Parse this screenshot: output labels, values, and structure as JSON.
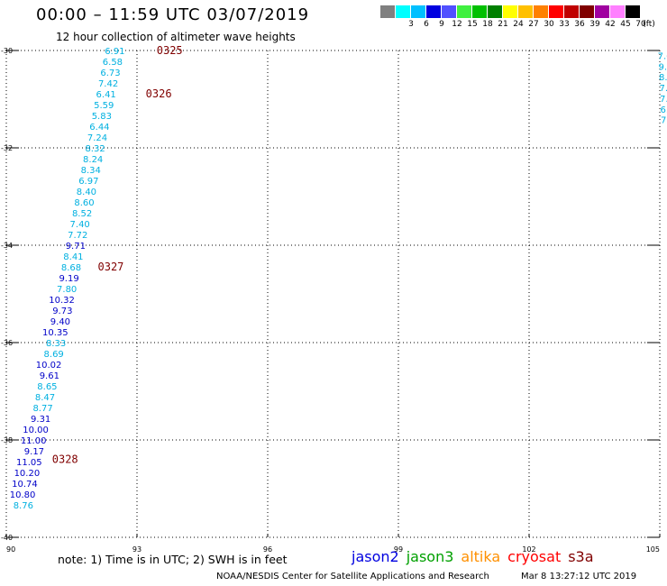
{
  "title": "00:00 – 11:59 UTC 03/07/2019",
  "subtitle": "12 hour collection of altimeter wave heights",
  "legend": {
    "unit": "(ft)",
    "bins": [
      {
        "label": "",
        "color": "#808080"
      },
      {
        "label": "3",
        "color": "#00ffff"
      },
      {
        "label": "6",
        "color": "#00c0ff"
      },
      {
        "label": "9",
        "color": "#0000e0"
      },
      {
        "label": "12",
        "color": "#5050ff"
      },
      {
        "label": "15",
        "color": "#40f040"
      },
      {
        "label": "18",
        "color": "#00c000"
      },
      {
        "label": "21",
        "color": "#008000"
      },
      {
        "label": "24",
        "color": "#ffff00"
      },
      {
        "label": "27",
        "color": "#ffc000"
      },
      {
        "label": "30",
        "color": "#ff8000"
      },
      {
        "label": "33",
        "color": "#ff0000"
      },
      {
        "label": "36",
        "color": "#c00000"
      },
      {
        "label": "39",
        "color": "#800000"
      },
      {
        "label": "42",
        "color": "#a000a0"
      },
      {
        "label": "45",
        "color": "#ff80ff"
      },
      {
        "label": "70",
        "color": "#000000"
      }
    ]
  },
  "map": {
    "lon_range": [
      90,
      105
    ],
    "lat_range": [
      -40,
      -30
    ],
    "x_ticks": [
      {
        "value": 90,
        "label": "90"
      },
      {
        "value": 93,
        "label": "93"
      },
      {
        "value": 96,
        "label": "96"
      },
      {
        "value": 99,
        "label": "99"
      },
      {
        "value": 102,
        "label": "102"
      },
      {
        "value": 105,
        "label": "105"
      }
    ],
    "y_ticks": [
      {
        "value": -30,
        "label": "-30"
      },
      {
        "value": -32,
        "label": "-32"
      },
      {
        "value": -34,
        "label": "-34"
      },
      {
        "value": -36,
        "label": "-36"
      },
      {
        "value": -38,
        "label": "-38"
      },
      {
        "value": -40,
        "label": "-40"
      }
    ],
    "grid": "dotted"
  },
  "colors": {
    "cyan_dark": "#00b0e0",
    "blue": "#0000c8",
    "time_label": "#800000"
  },
  "track_points": [
    {
      "lon": 92.72,
      "lat": -30.0,
      "value": "6.91",
      "color": "#00b0e0"
    },
    {
      "lon": 92.67,
      "lat": -30.22,
      "value": "6.58",
      "color": "#00b0e0"
    },
    {
      "lon": 92.62,
      "lat": -30.44,
      "value": "6.73",
      "color": "#00b0e0"
    },
    {
      "lon": 92.57,
      "lat": -30.67,
      "value": "7.42",
      "color": "#00b0e0"
    },
    {
      "lon": 92.52,
      "lat": -30.89,
      "value": "6.41",
      "color": "#00b0e0"
    },
    {
      "lon": 92.47,
      "lat": -31.11,
      "value": "5.59",
      "color": "#00b0e0"
    },
    {
      "lon": 92.42,
      "lat": -31.33,
      "value": "5.83",
      "color": "#00b0e0"
    },
    {
      "lon": 92.37,
      "lat": -31.56,
      "value": "6.44",
      "color": "#00b0e0"
    },
    {
      "lon": 92.32,
      "lat": -31.78,
      "value": "7.24",
      "color": "#00b0e0"
    },
    {
      "lon": 92.27,
      "lat": -32.0,
      "value": "8.32",
      "color": "#00b0e0"
    },
    {
      "lon": 92.22,
      "lat": -32.22,
      "value": "8.24",
      "color": "#00b0e0"
    },
    {
      "lon": 92.17,
      "lat": -32.44,
      "value": "8.34",
      "color": "#00b0e0"
    },
    {
      "lon": 92.12,
      "lat": -32.67,
      "value": "6.97",
      "color": "#00b0e0"
    },
    {
      "lon": 92.07,
      "lat": -32.89,
      "value": "8.40",
      "color": "#00b0e0"
    },
    {
      "lon": 92.02,
      "lat": -33.11,
      "value": "8.60",
      "color": "#00b0e0"
    },
    {
      "lon": 91.97,
      "lat": -33.33,
      "value": "8.52",
      "color": "#00b0e0"
    },
    {
      "lon": 91.92,
      "lat": -33.56,
      "value": "7.40",
      "color": "#00b0e0"
    },
    {
      "lon": 91.87,
      "lat": -33.78,
      "value": "7.72",
      "color": "#00b0e0"
    },
    {
      "lon": 91.82,
      "lat": -34.0,
      "value": "9.71",
      "color": "#0000c8"
    },
    {
      "lon": 91.77,
      "lat": -34.22,
      "value": "8.41",
      "color": "#00b0e0"
    },
    {
      "lon": 91.72,
      "lat": -34.44,
      "value": "8.68",
      "color": "#00b0e0"
    },
    {
      "lon": 91.67,
      "lat": -34.67,
      "value": "9.19",
      "color": "#0000c8"
    },
    {
      "lon": 91.62,
      "lat": -34.89,
      "value": "7.80",
      "color": "#00b0e0"
    },
    {
      "lon": 91.57,
      "lat": -35.11,
      "value": "10.32",
      "color": "#0000c8"
    },
    {
      "lon": 91.52,
      "lat": -35.33,
      "value": "9.73",
      "color": "#0000c8"
    },
    {
      "lon": 91.47,
      "lat": -35.56,
      "value": "9.40",
      "color": "#0000c8"
    },
    {
      "lon": 91.42,
      "lat": -35.78,
      "value": "10.35",
      "color": "#0000c8"
    },
    {
      "lon": 91.37,
      "lat": -36.0,
      "value": "8.33",
      "color": "#00b0e0"
    },
    {
      "lon": 91.32,
      "lat": -36.22,
      "value": "8.69",
      "color": "#00b0e0"
    },
    {
      "lon": 91.27,
      "lat": -36.44,
      "value": "10.02",
      "color": "#0000c8"
    },
    {
      "lon": 91.22,
      "lat": -36.67,
      "value": "9.61",
      "color": "#0000c8"
    },
    {
      "lon": 91.17,
      "lat": -36.89,
      "value": "8.65",
      "color": "#00b0e0"
    },
    {
      "lon": 91.12,
      "lat": -37.11,
      "value": "8.47",
      "color": "#00b0e0"
    },
    {
      "lon": 91.07,
      "lat": -37.33,
      "value": "8.77",
      "color": "#00b0e0"
    },
    {
      "lon": 91.02,
      "lat": -37.56,
      "value": "9.31",
      "color": "#0000c8"
    },
    {
      "lon": 90.97,
      "lat": -37.78,
      "value": "10.00",
      "color": "#0000c8"
    },
    {
      "lon": 90.92,
      "lat": -38.0,
      "value": "11.00",
      "color": "#0000c8"
    },
    {
      "lon": 90.87,
      "lat": -38.22,
      "value": "9.17",
      "color": "#0000c8"
    },
    {
      "lon": 90.82,
      "lat": -38.44,
      "value": "11.05",
      "color": "#0000c8"
    },
    {
      "lon": 90.77,
      "lat": -38.67,
      "value": "10.20",
      "color": "#0000c8"
    },
    {
      "lon": 90.72,
      "lat": -38.89,
      "value": "10.74",
      "color": "#0000c8"
    },
    {
      "lon": 90.67,
      "lat": -39.11,
      "value": "10.80",
      "color": "#0000c8"
    },
    {
      "lon": 90.62,
      "lat": -39.33,
      "value": "8.76",
      "color": "#00b0e0"
    }
  ],
  "time_labels": [
    {
      "lon": 93.45,
      "lat": -30.0,
      "label": "0325"
    },
    {
      "lon": 93.2,
      "lat": -30.89,
      "label": "0326"
    },
    {
      "lon": 92.1,
      "lat": -34.44,
      "label": "0327"
    },
    {
      "lon": 91.05,
      "lat": -38.4,
      "label": "0328"
    }
  ],
  "edge_points": [
    {
      "lon": 104.95,
      "lat": -30.1,
      "value": "7.6",
      "color": "#00b0e0"
    },
    {
      "lon": 104.97,
      "lat": -30.32,
      "value": "9.",
      "color": "#00b0e0"
    },
    {
      "lon": 104.98,
      "lat": -30.54,
      "value": "8.",
      "color": "#00b0e0"
    },
    {
      "lon": 104.99,
      "lat": -30.76,
      "value": "7.",
      "color": "#00b0e0"
    },
    {
      "lon": 105.0,
      "lat": -30.98,
      "value": "7.",
      "color": "#00b0e0"
    },
    {
      "lon": 105.01,
      "lat": -31.2,
      "value": "6.",
      "color": "#00b0e0"
    },
    {
      "lon": 105.02,
      "lat": -31.42,
      "value": "7",
      "color": "#00b0e0"
    }
  ],
  "footer": {
    "note": "note: 1) Time is in UTC; 2) SWH is in feet",
    "satellites": [
      {
        "name": "jason2",
        "color": "#0000e0"
      },
      {
        "name": "jason3",
        "color": "#00a000"
      },
      {
        "name": "altika",
        "color": "#ff9000"
      },
      {
        "name": "cryosat",
        "color": "#ff0000"
      },
      {
        "name": "s3a",
        "color": "#800000"
      }
    ],
    "credit": "NOAA/NESDIS Center for Satellite Applications and Research",
    "timestamp": "Mar  8 13:27:12 UTC 2019"
  }
}
